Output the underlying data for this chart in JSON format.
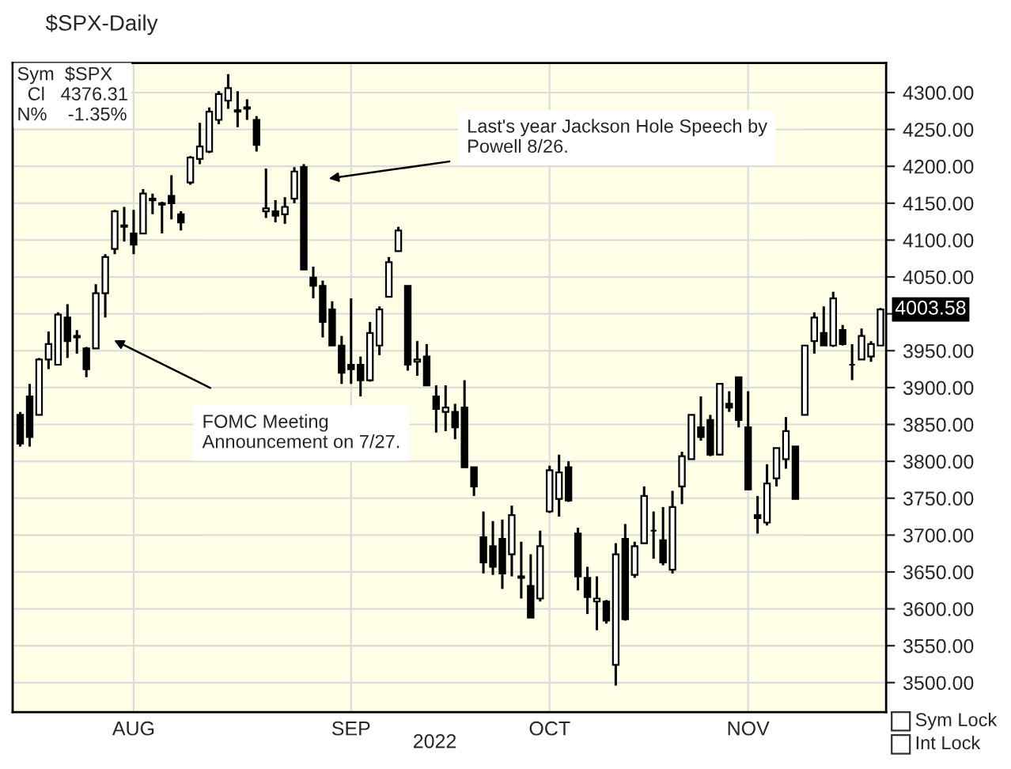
{
  "chart_data": {
    "type": "candlestick",
    "title": "$SPX-Daily",
    "xlabel": "2022",
    "categories": [
      null,
      null,
      null,
      null,
      null,
      null,
      null,
      null,
      null,
      null,
      null,
      null,
      "AUG",
      null,
      null,
      null,
      null,
      null,
      null,
      null,
      null,
      null,
      null,
      null,
      null,
      null,
      null,
      null,
      null,
      null,
      null,
      null,
      null,
      null,
      null,
      "SEP",
      null,
      null,
      null,
      null,
      null,
      null,
      null,
      null,
      null,
      null,
      null,
      null,
      null,
      null,
      null,
      null,
      null,
      null,
      null,
      null,
      "OCT",
      null,
      null,
      null,
      null,
      null,
      null,
      null,
      null,
      null,
      null,
      null,
      null,
      null,
      null,
      null,
      null,
      null,
      null,
      null,
      null,
      "NOV",
      null,
      null,
      null,
      null,
      null,
      null,
      null,
      null,
      null,
      null,
      null,
      null,
      null,
      null
    ],
    "ohlc": [
      [
        3863,
        3867,
        3820,
        3824
      ],
      [
        3888,
        3905,
        3820,
        3833
      ],
      [
        3863,
        3940,
        3863,
        3938
      ],
      [
        3938,
        3976,
        3925,
        3959
      ],
      [
        3931,
        4002,
        3931,
        3999
      ],
      [
        3995,
        4013,
        3940,
        3963
      ],
      [
        3968,
        3978,
        3946,
        3970
      ],
      [
        3953,
        3955,
        3914,
        3925
      ],
      [
        3953,
        4040,
        3953,
        4028
      ],
      [
        4028,
        4081,
        3995,
        4077
      ],
      [
        4088,
        4141,
        4081,
        4139
      ],
      [
        4118,
        4145,
        4098,
        4120
      ],
      [
        4109,
        4141,
        4081,
        4094
      ],
      [
        4109,
        4169,
        4109,
        4163
      ],
      [
        4156,
        4163,
        4135,
        4154
      ],
      [
        4150,
        4152,
        4109,
        4148
      ],
      [
        4160,
        4188,
        4128,
        4150
      ],
      [
        4135,
        4139,
        4113,
        4124
      ],
      [
        4178,
        4214,
        4175,
        4212
      ],
      [
        4210,
        4259,
        4203,
        4227
      ],
      [
        4220,
        4280,
        4218,
        4274
      ],
      [
        4263,
        4302,
        4257,
        4298
      ],
      [
        4289,
        4325,
        4278,
        4306
      ],
      [
        4274,
        4302,
        4253,
        4276
      ],
      [
        4278,
        4291,
        4263,
        4280
      ],
      [
        4263,
        4268,
        4220,
        4229
      ],
      [
        4139,
        4197,
        4130,
        4143
      ],
      [
        4139,
        4154,
        4124,
        4133
      ],
      [
        4135,
        4158,
        4122,
        4145
      ],
      [
        4156,
        4199,
        4150,
        4193
      ],
      [
        4199,
        4203,
        4060,
        4060
      ],
      [
        4049,
        4064,
        4021,
        4038
      ],
      [
        4038,
        4045,
        3968,
        3989
      ],
      [
        4006,
        4017,
        3957,
        3957
      ],
      [
        3957,
        3970,
        3905,
        3920
      ],
      [
        3931,
        4021,
        3905,
        3925
      ],
      [
        3931,
        3942,
        3888,
        3910
      ],
      [
        3910,
        3989,
        3908,
        3974
      ],
      [
        3957,
        4010,
        3944,
        4006
      ],
      [
        4023,
        4077,
        4023,
        4070
      ],
      [
        4085,
        4118,
        4085,
        4113
      ],
      [
        4038,
        4038,
        3923,
        3931
      ],
      [
        3935,
        3963,
        3916,
        3938
      ],
      [
        3942,
        3959,
        3903,
        3903
      ],
      [
        3888,
        3903,
        3839,
        3871
      ],
      [
        3867,
        3903,
        3841,
        3873
      ],
      [
        3867,
        3878,
        3830,
        3846
      ],
      [
        3873,
        3910,
        3792,
        3792
      ],
      [
        3792,
        3792,
        3753,
        3766
      ],
      [
        3697,
        3732,
        3648,
        3663
      ],
      [
        3685,
        3719,
        3646,
        3657
      ],
      [
        3695,
        3721,
        3627,
        3648
      ],
      [
        3674,
        3740,
        3644,
        3727
      ],
      [
        3642,
        3691,
        3614,
        3644
      ],
      [
        3631,
        3674,
        3588,
        3588
      ],
      [
        3614,
        3706,
        3610,
        3685
      ],
      [
        3732,
        3794,
        3730,
        3788
      ],
      [
        3749,
        3809,
        3725,
        3785
      ],
      [
        3792,
        3800,
        3745,
        3747
      ],
      [
        3702,
        3710,
        3625,
        3644
      ],
      [
        3642,
        3657,
        3593,
        3616
      ],
      [
        3610,
        3644,
        3571,
        3614
      ],
      [
        3610,
        3612,
        3580,
        3584
      ],
      [
        3524,
        3689,
        3496,
        3674
      ],
      [
        3695,
        3715,
        3584,
        3586
      ],
      [
        3646,
        3691,
        3642,
        3685
      ],
      [
        3689,
        3766,
        3689,
        3753
      ],
      [
        3706,
        3732,
        3668,
        3706
      ],
      [
        3693,
        3738,
        3659,
        3663
      ],
      [
        3653,
        3760,
        3648,
        3738
      ],
      [
        3766,
        3813,
        3742,
        3807
      ],
      [
        3803,
        3863,
        3803,
        3863
      ],
      [
        3846,
        3888,
        3828,
        3833
      ],
      [
        3856,
        3863,
        3807,
        3809
      ],
      [
        3809,
        3905,
        3809,
        3905
      ],
      [
        3878,
        3895,
        3867,
        3873
      ],
      [
        3914,
        3914,
        3846,
        3856
      ],
      [
        3846,
        3895,
        3762,
        3762
      ],
      [
        3727,
        3753,
        3702,
        3723
      ],
      [
        3717,
        3796,
        3713,
        3770
      ],
      [
        3777,
        3818,
        3766,
        3818
      ],
      [
        3803,
        3860,
        3790,
        3841
      ],
      [
        3820,
        3820,
        3749,
        3749
      ],
      [
        3863,
        3957,
        3863,
        3957
      ],
      [
        3963,
        4002,
        3946,
        3995
      ],
      [
        3974,
        4010,
        3957,
        3957
      ],
      [
        3957,
        4030,
        3955,
        4021
      ],
      [
        3978,
        3985,
        3957,
        3959
      ],
      [
        3931,
        3959,
        3910,
        3931
      ],
      [
        3938,
        3980,
        3938,
        3970
      ],
      [
        3942,
        3963,
        3935,
        3959
      ],
      [
        3957,
        4008,
        3957,
        4006
      ]
    ],
    "color": "#000000",
    "ylim": [
      3460,
      4340
    ],
    "yticks": [
      {
        "value": 3500,
        "label": "3500.00"
      },
      {
        "value": 3550,
        "label": "3550.00"
      },
      {
        "value": 3600,
        "label": "3600.00"
      },
      {
        "value": 3650,
        "label": "3650.00"
      },
      {
        "value": 3700,
        "label": "3700.00"
      },
      {
        "value": 3750,
        "label": "3750.00"
      },
      {
        "value": 3800,
        "label": "3800.00"
      },
      {
        "value": 3850,
        "label": "3850.00"
      },
      {
        "value": 3900,
        "label": "3900.00"
      },
      {
        "value": 3950,
        "label": "3950.00"
      },
      {
        "value": 4000,
        "label": null
      },
      {
        "value": 4050,
        "label": "4050.00"
      },
      {
        "value": 4100,
        "label": "4100.00"
      },
      {
        "value": 4150,
        "label": "4150.00"
      },
      {
        "value": 4200,
        "label": "4200.00"
      },
      {
        "value": 4250,
        "label": "4250.00"
      },
      {
        "value": 4300,
        "label": "4300.00"
      }
    ],
    "grid": true,
    "annotations": [
      "Sym  $SPX\n  Cl   4376.31\nN%    -1.35%",
      "FOMC Meeting\nAnnouncement on 7/27.",
      "Last's year Jackson Hole Speech by\nPowell 8/26.",
      "Sym Lock",
      "Int Lock",
      "4003.58"
    ]
  }
}
